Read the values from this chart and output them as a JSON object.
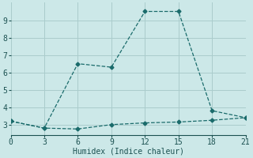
{
  "line1_x": [
    0,
    3,
    6,
    9,
    12,
    15,
    18,
    21
  ],
  "line1_y": [
    3.2,
    2.8,
    6.5,
    6.3,
    9.5,
    9.5,
    3.8,
    3.4
  ],
  "line2_x": [
    0,
    3,
    6,
    9,
    12,
    15,
    18,
    21
  ],
  "line2_y": [
    3.2,
    2.8,
    2.75,
    3.0,
    3.1,
    3.15,
    3.25,
    3.4
  ],
  "line_color": "#1a6b6b",
  "marker": "D",
  "marker_size": 2.5,
  "xlabel": "Humidex (Indice chaleur)",
  "xlim": [
    0,
    21
  ],
  "ylim": [
    2.4,
    10.0
  ],
  "xticks": [
    0,
    3,
    6,
    9,
    12,
    15,
    18,
    21
  ],
  "yticks": [
    3,
    4,
    5,
    6,
    7,
    8,
    9
  ],
  "background_color": "#cce8e8",
  "grid_color": "#aacccc",
  "font_color": "#1a5050",
  "xlabel_fontsize": 7,
  "tick_fontsize": 7,
  "linewidth": 0.9,
  "linestyle": "--"
}
